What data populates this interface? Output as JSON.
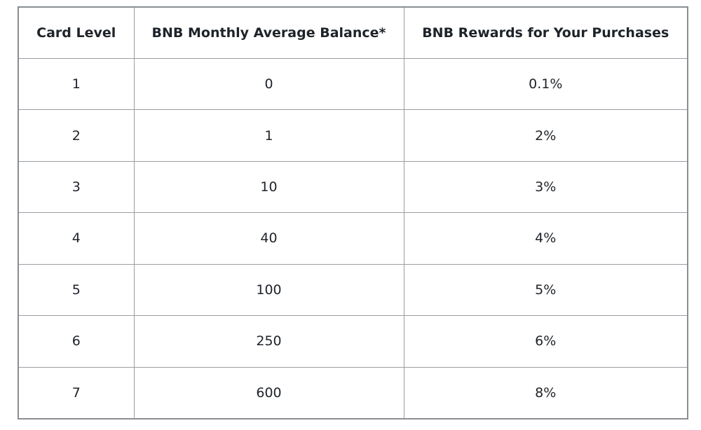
{
  "table": {
    "header": [
      "Card Level",
      "BNB Monthly Average Balance*",
      "BNB Rewards for Your Purchases"
    ],
    "rows": [
      [
        "1",
        "0",
        "0.1%"
      ],
      [
        "2",
        "1",
        "2%"
      ],
      [
        "3",
        "10",
        "3%"
      ],
      [
        "4",
        "40",
        "4%"
      ],
      [
        "5",
        "100",
        "5%"
      ],
      [
        "6",
        "250",
        "6%"
      ],
      [
        "7",
        "600",
        "8%"
      ]
    ]
  }
}
